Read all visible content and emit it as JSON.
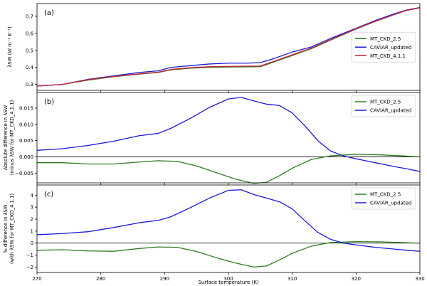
{
  "chart_data": [
    {
      "type": "line",
      "panel_label": "(a)",
      "ylabel_lines": [
        "λSW (W m⁻² K⁻¹)"
      ],
      "xlim": [
        270,
        330
      ],
      "ylim": [
        0.265,
        0.775
      ],
      "yticks": [
        0.3,
        0.4,
        0.5,
        0.6,
        0.7
      ],
      "ytick_labels": [
        "0.3",
        "0.4",
        "0.5",
        "0.6",
        "0.7"
      ],
      "zero_line": false,
      "legend_position": "center-right",
      "series": [
        {
          "name": "MT_CKD_2.5",
          "color": "#2e7d1f",
          "points": [
            [
              270,
              0.29
            ],
            [
              274,
              0.3
            ],
            [
              278,
              0.325
            ],
            [
              282,
              0.345
            ],
            [
              286,
              0.36
            ],
            [
              289,
              0.37
            ],
            [
              291,
              0.385
            ],
            [
              294,
              0.395
            ],
            [
              297,
              0.4
            ],
            [
              300,
              0.402
            ],
            [
              303,
              0.403
            ],
            [
              305,
              0.404
            ],
            [
              307,
              0.43
            ],
            [
              310,
              0.47
            ],
            [
              313,
              0.51
            ],
            [
              316,
              0.56
            ],
            [
              320,
              0.625
            ],
            [
              323,
              0.67
            ],
            [
              326,
              0.71
            ],
            [
              328,
              0.735
            ],
            [
              330,
              0.75
            ]
          ]
        },
        {
          "name": "CAVIAR_updated",
          "color": "#1a1ad6",
          "points": [
            [
              270,
              0.29
            ],
            [
              274,
              0.3
            ],
            [
              278,
              0.33
            ],
            [
              282,
              0.35
            ],
            [
              286,
              0.37
            ],
            [
              289,
              0.38
            ],
            [
              291,
              0.4
            ],
            [
              294,
              0.41
            ],
            [
              297,
              0.42
            ],
            [
              300,
              0.425
            ],
            [
              303,
              0.425
            ],
            [
              305,
              0.428
            ],
            [
              307,
              0.45
            ],
            [
              310,
              0.49
            ],
            [
              313,
              0.52
            ],
            [
              316,
              0.57
            ],
            [
              320,
              0.63
            ],
            [
              323,
              0.675
            ],
            [
              326,
              0.715
            ],
            [
              328,
              0.738
            ],
            [
              330,
              0.752
            ]
          ]
        },
        {
          "name": "MT_CKD_4.1.1",
          "color": "#cc1f3a",
          "points": [
            [
              270,
              0.29
            ],
            [
              274,
              0.3
            ],
            [
              278,
              0.328
            ],
            [
              282,
              0.347
            ],
            [
              286,
              0.362
            ],
            [
              289,
              0.372
            ],
            [
              291,
              0.388
            ],
            [
              294,
              0.398
            ],
            [
              297,
              0.404
            ],
            [
              300,
              0.406
            ],
            [
              303,
              0.407
            ],
            [
              305,
              0.408
            ],
            [
              307,
              0.434
            ],
            [
              310,
              0.474
            ],
            [
              313,
              0.513
            ],
            [
              316,
              0.563
            ],
            [
              320,
              0.627
            ],
            [
              323,
              0.671
            ],
            [
              326,
              0.711
            ],
            [
              328,
              0.736
            ],
            [
              330,
              0.751
            ]
          ]
        }
      ]
    },
    {
      "type": "line",
      "panel_label": "(b)",
      "ylabel_lines": [
        "Absolute difference in λSW",
        "(minus λSW for MT_CKD_4.1.1)"
      ],
      "xlim": [
        270,
        330
      ],
      "ylim": [
        -0.008,
        0.0198
      ],
      "yticks": [
        -0.005,
        0.0,
        0.005,
        0.01,
        0.015
      ],
      "ytick_labels": [
        "−0.005",
        "0.000",
        "0.005",
        "0.010",
        "0.015"
      ],
      "zero_line": true,
      "legend_position": "upper-right",
      "series": [
        {
          "name": "MT_CKD_2.5",
          "color": "#2e7d1f",
          "points": [
            [
              270,
              -0.0018
            ],
            [
              274,
              -0.0018
            ],
            [
              278,
              -0.0022
            ],
            [
              282,
              -0.0022
            ],
            [
              286,
              -0.0016
            ],
            [
              289,
              -0.0012
            ],
            [
              292,
              -0.0014
            ],
            [
              295,
              -0.0028
            ],
            [
              298,
              -0.0048
            ],
            [
              301,
              -0.0068
            ],
            [
              304,
              -0.0082
            ],
            [
              306,
              -0.0078
            ],
            [
              308,
              -0.0058
            ],
            [
              310,
              -0.0035
            ],
            [
              313,
              -0.0008
            ],
            [
              316,
              0.0003
            ],
            [
              320,
              0.0008
            ],
            [
              324,
              0.0006
            ],
            [
              327,
              0.0003
            ],
            [
              330,
              0.0
            ]
          ]
        },
        {
          "name": "CAVIAR_updated",
          "color": "#1a1ad6",
          "points": [
            [
              270,
              0.002
            ],
            [
              274,
              0.0025
            ],
            [
              278,
              0.0035
            ],
            [
              282,
              0.0048
            ],
            [
              286,
              0.0065
            ],
            [
              289,
              0.0072
            ],
            [
              291,
              0.0088
            ],
            [
              294,
              0.0118
            ],
            [
              297,
              0.0152
            ],
            [
              300,
              0.0178
            ],
            [
              302,
              0.0183
            ],
            [
              304,
              0.0172
            ],
            [
              306,
              0.0162
            ],
            [
              308,
              0.0158
            ],
            [
              310,
              0.0135
            ],
            [
              312,
              0.0095
            ],
            [
              314,
              0.005
            ],
            [
              316,
              0.0018
            ],
            [
              318,
              0.0003
            ],
            [
              320,
              -0.0006
            ],
            [
              323,
              -0.0018
            ],
            [
              326,
              -0.003
            ],
            [
              328,
              -0.0037
            ],
            [
              330,
              -0.0045
            ]
          ]
        }
      ]
    },
    {
      "type": "line",
      "panel_label": "(c)",
      "ylabel_lines": [
        "% difference in λSW",
        "(with λSW for MT_CKD_4.1.1)"
      ],
      "xlim": [
        270,
        330
      ],
      "ylim": [
        -2.45,
        4.85
      ],
      "yticks": [
        -2,
        -1,
        0,
        1,
        2,
        3,
        4
      ],
      "ytick_labels": [
        "−2",
        "−1",
        "0",
        "1",
        "2",
        "3",
        "4"
      ],
      "zero_line": true,
      "legend_position": "upper-right",
      "series": [
        {
          "name": "MT_CKD_2.5",
          "color": "#2e7d1f",
          "points": [
            [
              270,
              -0.6
            ],
            [
              274,
              -0.55
            ],
            [
              278,
              -0.65
            ],
            [
              282,
              -0.68
            ],
            [
              286,
              -0.45
            ],
            [
              289,
              -0.32
            ],
            [
              292,
              -0.35
            ],
            [
              295,
              -0.7
            ],
            [
              298,
              -1.2
            ],
            [
              301,
              -1.65
            ],
            [
              304,
              -2.0
            ],
            [
              306,
              -1.9
            ],
            [
              308,
              -1.4
            ],
            [
              310,
              -0.85
            ],
            [
              313,
              -0.25
            ],
            [
              316,
              0.05
            ],
            [
              320,
              0.12
            ],
            [
              324,
              0.1
            ],
            [
              327,
              0.05
            ],
            [
              330,
              0.0
            ]
          ]
        },
        {
          "name": "CAVIAR_updated",
          "color": "#1a1ad6",
          "points": [
            [
              270,
              0.7
            ],
            [
              274,
              0.8
            ],
            [
              278,
              0.95
            ],
            [
              282,
              1.3
            ],
            [
              286,
              1.7
            ],
            [
              289,
              1.9
            ],
            [
              291,
              2.2
            ],
            [
              294,
              2.95
            ],
            [
              297,
              3.75
            ],
            [
              300,
              4.4
            ],
            [
              302,
              4.45
            ],
            [
              304,
              4.05
            ],
            [
              306,
              3.75
            ],
            [
              308,
              3.45
            ],
            [
              310,
              2.85
            ],
            [
              312,
              1.85
            ],
            [
              314,
              0.9
            ],
            [
              316,
              0.32
            ],
            [
              318,
              0.0
            ],
            [
              320,
              -0.15
            ],
            [
              323,
              -0.35
            ],
            [
              326,
              -0.5
            ],
            [
              328,
              -0.6
            ],
            [
              330,
              -0.68
            ]
          ]
        }
      ]
    }
  ],
  "x_axis": {
    "label": "Surface temperature (K)",
    "ticks": [
      270,
      280,
      290,
      300,
      310,
      320,
      330
    ],
    "tick_labels": [
      "270",
      "280",
      "290",
      "300",
      "310",
      "320",
      "330"
    ]
  }
}
